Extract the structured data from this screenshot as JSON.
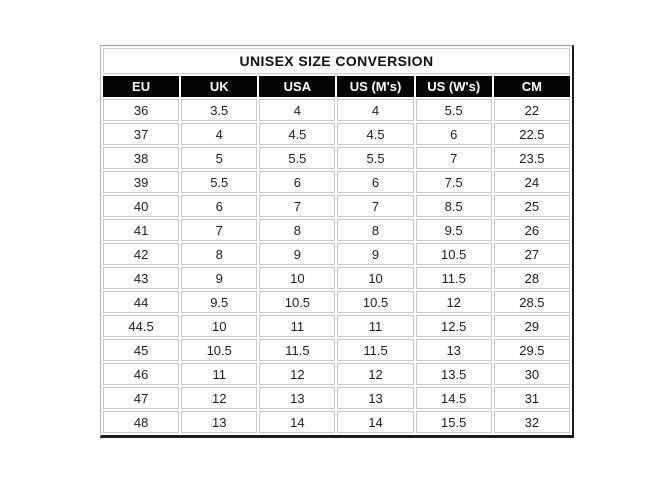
{
  "chart_data": {
    "type": "table",
    "title": "UNISEX SIZE CONVERSION",
    "columns": [
      "EU",
      "UK",
      "USA",
      "US (M's)",
      "US (W's)",
      "CM"
    ],
    "rows": [
      [
        "36",
        "3.5",
        "4",
        "4",
        "5.5",
        "22"
      ],
      [
        "37",
        "4",
        "4.5",
        "4.5",
        "6",
        "22.5"
      ],
      [
        "38",
        "5",
        "5.5",
        "5.5",
        "7",
        "23.5"
      ],
      [
        "39",
        "5.5",
        "6",
        "6",
        "7.5",
        "24"
      ],
      [
        "40",
        "6",
        "7",
        "7",
        "8.5",
        "25"
      ],
      [
        "41",
        "7",
        "8",
        "8",
        "9.5",
        "26"
      ],
      [
        "42",
        "8",
        "9",
        "9",
        "10.5",
        "27"
      ],
      [
        "43",
        "9",
        "10",
        "10",
        "11.5",
        "28"
      ],
      [
        "44",
        "9.5",
        "10.5",
        "10.5",
        "12",
        "28.5"
      ],
      [
        "44.5",
        "10",
        "11",
        "11",
        "12.5",
        "29"
      ],
      [
        "45",
        "10.5",
        "11.5",
        "11.5",
        "13",
        "29.5"
      ],
      [
        "46",
        "11",
        "12",
        "12",
        "13.5",
        "30"
      ],
      [
        "47",
        "12",
        "13",
        "13",
        "14.5",
        "31"
      ],
      [
        "48",
        "13",
        "14",
        "14",
        "15.5",
        "32"
      ]
    ],
    "colors": {
      "header_bg": "#050505",
      "header_text": "#ffffff",
      "cell_border": "#c8c8c8",
      "cell_text": "#1f1f1f",
      "outer_border": "#1c1c1c",
      "background": "#ffffff"
    },
    "layout_hints": {
      "grid": "on",
      "title_position": "top-row-spanning-all-columns",
      "column_count": 6,
      "row_count": 14
    }
  }
}
